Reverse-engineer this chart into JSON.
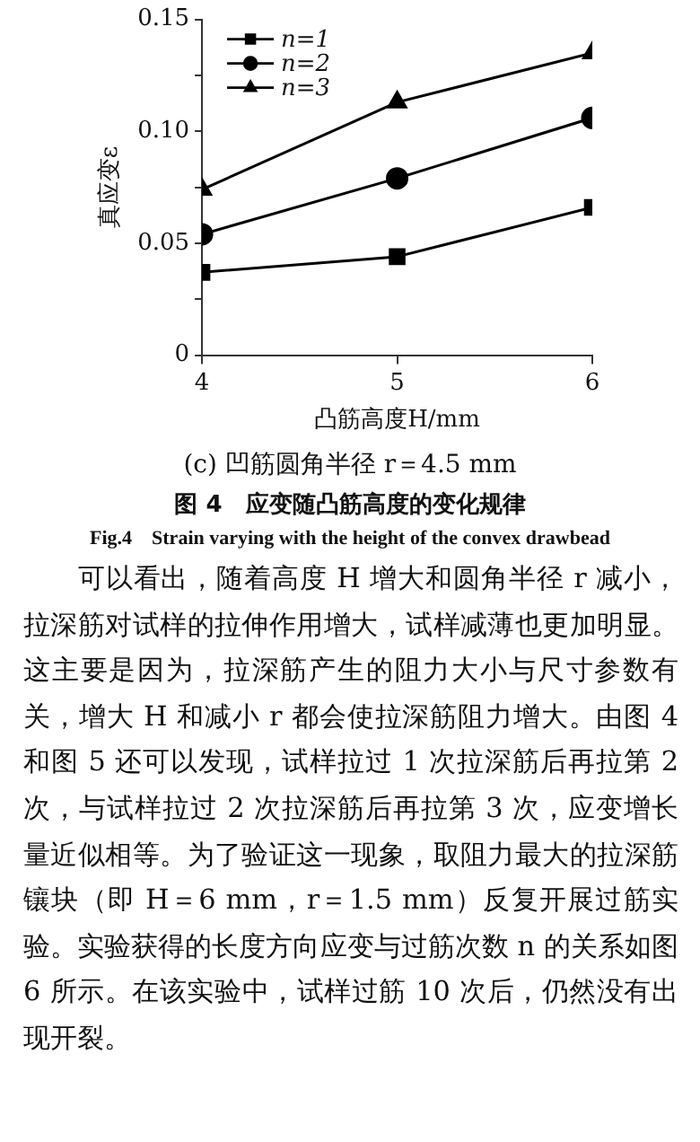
{
  "chart_data": {
    "type": "line",
    "title": "(c) 凹筋圆角半径 r＝4.5 mm",
    "xlabel": "凸筋高度H/mm",
    "ylabel": "真应变ε",
    "x": [
      4,
      5,
      6
    ],
    "series": [
      {
        "name": "n=1",
        "color": "#000000",
        "marker": "square",
        "values": [
          0.037,
          0.044,
          0.066
        ]
      },
      {
        "name": "n=2",
        "color": "#000000",
        "marker": "circle",
        "values": [
          0.054,
          0.079,
          0.106
        ]
      },
      {
        "name": "n=3",
        "color": "#000000",
        "marker": "triangle",
        "values": [
          0.074,
          0.113,
          0.135
        ]
      }
    ],
    "xlim": [
      4,
      6
    ],
    "xticks": [
      4,
      5,
      6
    ],
    "ylim": [
      0,
      0.15
    ],
    "yticks": [
      "0",
      {
        "value": 0.025,
        "label": null
      },
      {
        "value": 0.05,
        "label": "0.05"
      },
      {
        "value": 0.075,
        "label": null
      },
      {
        "value": 0.1,
        "label": "0.10"
      },
      {
        "value": 0.125,
        "label": null
      },
      {
        "value": 0.15,
        "label": "0.15"
      }
    ],
    "grid": false,
    "legend": "top left",
    "line_style": "solid",
    "annotations": [
      "图 4　应变随凸筋高度的变化规律",
      "Fig.4　Strain varying with the height of the convex drawbead",
      "可以看出，随着高度 H 增大和圆角半径 r 减小，拉深筋对试样的拉伸作用增大，试样减薄也更加明显。这主要是因为，拉深筋产生的阻力大小与尺寸参数有关，增大 H 和减小 r 都会使拉深筋阻力增大。由图 4 和图 5 还可以发现，试样拉过 1 次拉深筋后再拉第 2 次，与试样拉过 2 次拉深筋后再拉第 3 次，应变增长量近似相等。为了验证这一现象，取阻力最大的拉深筋镶块（即 H＝6 mm，r＝1.5 mm）反复开展过筋实验。实验获得的长度方向应变与过筋次数 n 的关系如图 6 所示。在该实验中，试样过筋 10 次后，仍然没有出现开裂。"
    ]
  }
}
